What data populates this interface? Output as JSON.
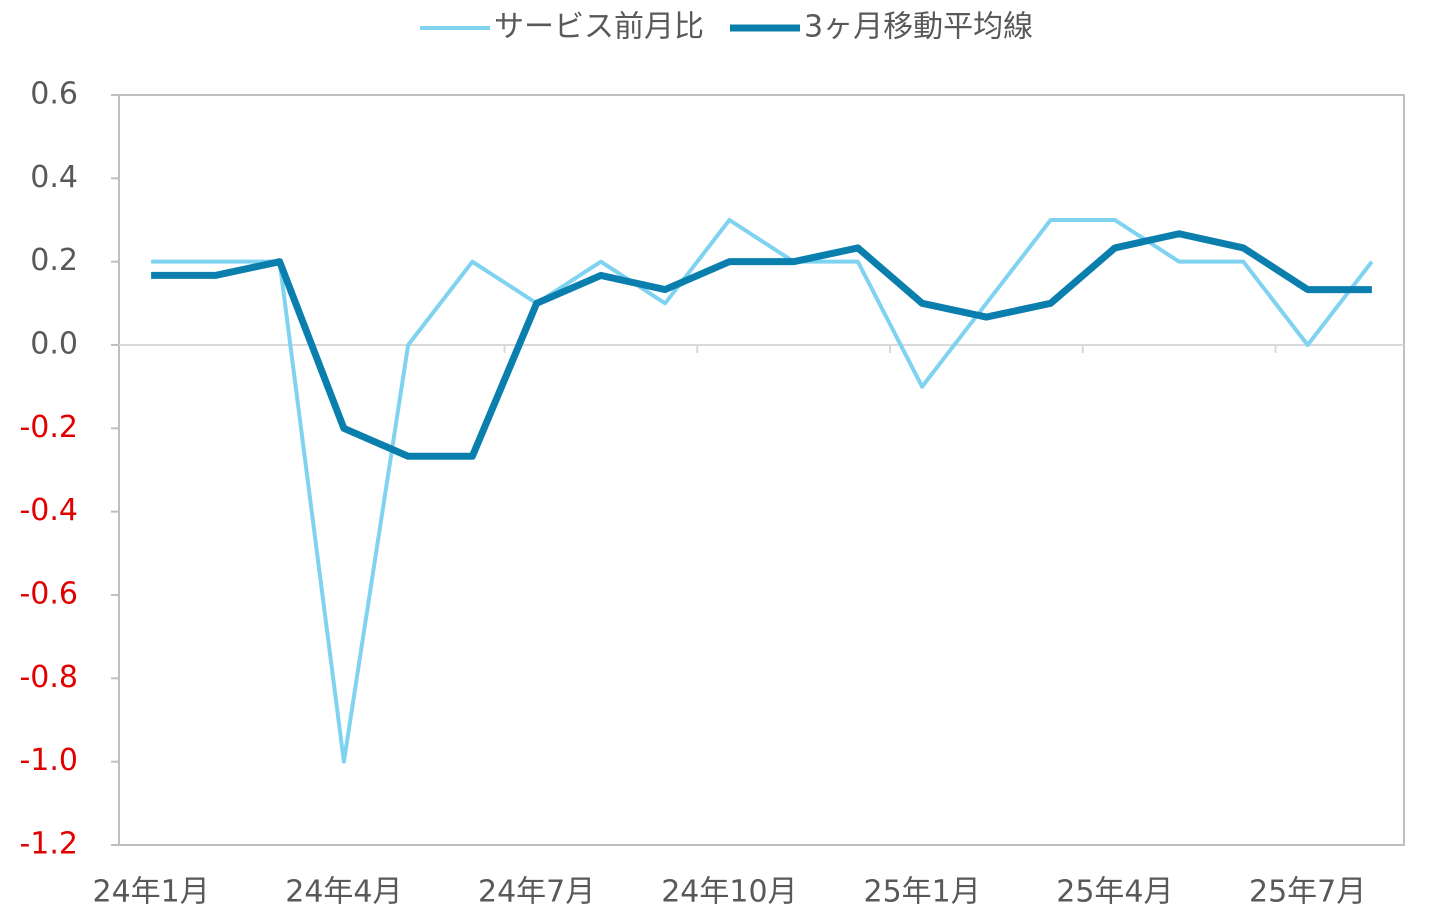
{
  "chart_data": {
    "type": "line",
    "categories": [
      "24年1月",
      null,
      null,
      "24年4月",
      null,
      null,
      "24年7月",
      null,
      null,
      "24年10月",
      null,
      null,
      "25年1月",
      null,
      null,
      "25年4月",
      null,
      null,
      "25年7月",
      null
    ],
    "series": [
      {
        "name": "サービス前月比",
        "color": "#7fd3f0",
        "values": [
          0.2,
          0.2,
          0.2,
          -1.0,
          0.0,
          0.2,
          0.1,
          0.2,
          0.1,
          0.3,
          0.2,
          0.2,
          -0.1,
          0.1,
          0.3,
          0.3,
          0.2,
          0.2,
          0.0,
          0.2
        ]
      },
      {
        "name": "3ヶ月移動平均線",
        "color": "#0a7fae",
        "values": [
          0.167,
          0.167,
          0.2,
          -0.2,
          -0.267,
          -0.267,
          0.1,
          0.167,
          0.133,
          0.2,
          0.2,
          0.233,
          0.1,
          0.067,
          0.1,
          0.233,
          0.267,
          0.233,
          0.133,
          0.133
        ]
      }
    ],
    "ylim": [
      -1.2,
      0.6
    ],
    "yticks": [
      0.6,
      0.4,
      0.2,
      {
        "value": 0,
        "label": "0.0"
      },
      -0.2,
      -0.4,
      -0.6,
      -0.8,
      {
        "value": -1,
        "label": "-1.0"
      },
      -1.2
    ],
    "negative_tick_color": "#e00000",
    "grid": false,
    "legend": "top"
  }
}
